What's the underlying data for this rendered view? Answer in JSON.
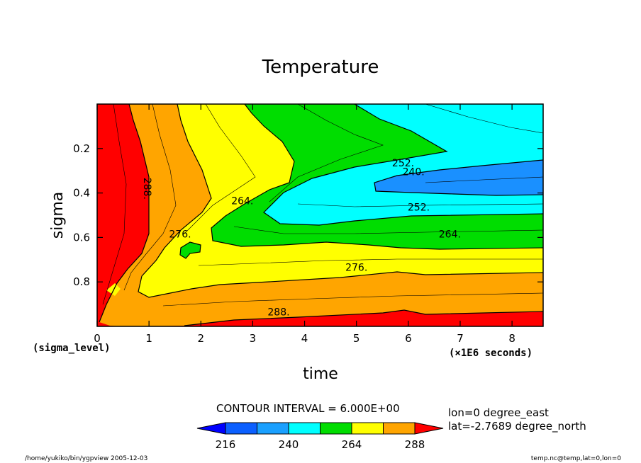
{
  "chart_data": {
    "type": "heatmap",
    "title": "Temperature",
    "xlabel": "time",
    "ylabel": "sigma",
    "x_corner_label": "(sigma_level)",
    "x_units_label": "(×1E6 seconds)",
    "xlim": [
      0,
      8.6
    ],
    "ylim": [
      0.0,
      1.0
    ],
    "y_inverted": true,
    "x_ticks": [
      "0",
      "1",
      "2",
      "3",
      "4",
      "5",
      "6",
      "7",
      "8"
    ],
    "x_tick_values": [
      0,
      1,
      2,
      3,
      4,
      5,
      6,
      7,
      8
    ],
    "y_ticks": [
      "0.2",
      "0.4",
      "0.6",
      "0.8"
    ],
    "y_tick_values": [
      0.2,
      0.4,
      0.6,
      0.8
    ],
    "contour_interval_text": "CONTOUR INTERVAL = 6.000E+00",
    "contour_labels": [
      {
        "text": "288.",
        "x": 0.9,
        "y": 0.38,
        "rotated": true
      },
      {
        "text": "276.",
        "x": 1.6,
        "y": 0.6
      },
      {
        "text": "264.",
        "x": 2.8,
        "y": 0.45
      },
      {
        "text": "252.",
        "x": 5.9,
        "y": 0.28
      },
      {
        "text": "240.",
        "x": 6.1,
        "y": 0.32
      },
      {
        "text": "252.",
        "x": 6.2,
        "y": 0.48
      },
      {
        "text": "264.",
        "x": 6.8,
        "y": 0.6
      },
      {
        "text": "276.",
        "x": 5.0,
        "y": 0.75
      },
      {
        "text": "288.",
        "x": 3.5,
        "y": 0.95
      }
    ],
    "colorbar": {
      "ticks": [
        "216",
        "240",
        "264",
        "288"
      ],
      "levels": [
        216,
        228,
        240,
        252,
        264,
        276,
        288
      ],
      "colors": [
        "#0000ff",
        "#0b5fff",
        "#1aa0ff",
        "#00ffff",
        "#00dd00",
        "#ffff00",
        "#ffa500",
        "#ff0000"
      ],
      "under_color": "#0000ff",
      "over_color": "#ff0000"
    },
    "info_lines": [
      "lon=0 degree_east",
      "lat=-2.7689 degree_north"
    ]
  },
  "footer": {
    "left": "/home/yukiko/bin/ygpview  2005-12-03",
    "right": "temp.nc@temp,lat=0,lon=0"
  }
}
